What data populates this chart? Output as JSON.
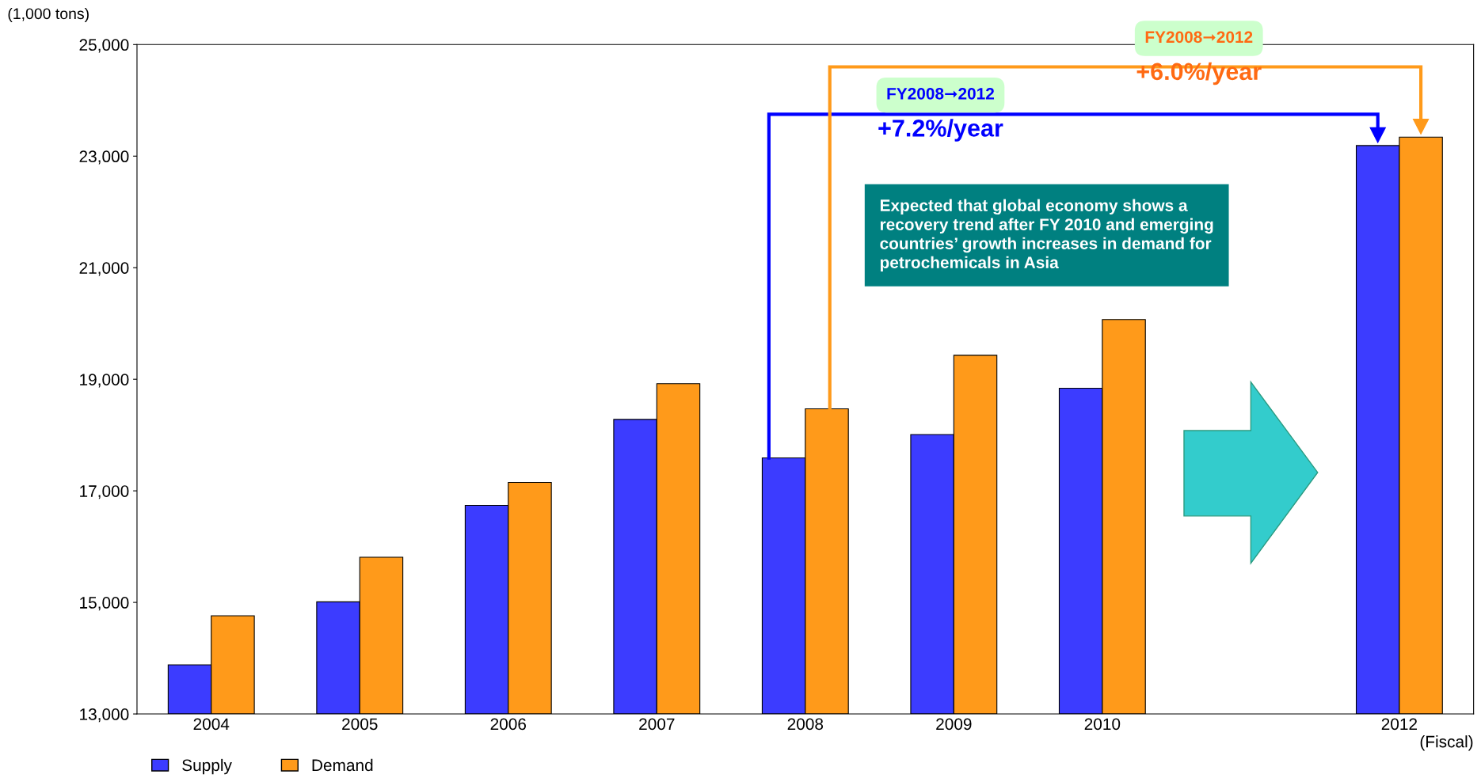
{
  "chart_data": {
    "type": "bar",
    "ylabel": "(1,000 tons)",
    "xlabel": "(Fiscal)",
    "categories": [
      "2004",
      "2005",
      "2006",
      "2007",
      "2008",
      "2009",
      "2010",
      null,
      "2012"
    ],
    "series": [
      {
        "name": "Supply",
        "color": "#3c3cff",
        "values": [
          13880,
          15010,
          16740,
          18280,
          17590,
          18010,
          18840,
          null,
          23190
        ]
      },
      {
        "name": "Demand",
        "color": "#ff9a1a",
        "values": [
          14760,
          15810,
          17150,
          18920,
          18470,
          19430,
          20070,
          null,
          23340
        ]
      }
    ],
    "ylim": [
      13000,
      25000
    ],
    "yticks": [
      {
        "value": 13000,
        "label": "13,000"
      },
      {
        "value": 15000,
        "label": "15,000"
      },
      {
        "value": 17000,
        "label": "17,000"
      },
      {
        "value": 19000,
        "label": "19,000"
      },
      {
        "value": 21000,
        "label": "21,000"
      },
      {
        "value": 23000,
        "label": "23,000"
      },
      {
        "value": 25000,
        "label": "25,000"
      }
    ],
    "grid": false,
    "legend": "bottom left",
    "annotations": [
      "FY2008➞2012",
      "+7.2%/year",
      "FY2008➞2012",
      "+6.0%/year",
      "Expected that global economy shows a\nrecovery trend after FY 2010 and emerging\ncountries’ growth increases in demand for\npetrochemicals in Asia"
    ]
  }
}
